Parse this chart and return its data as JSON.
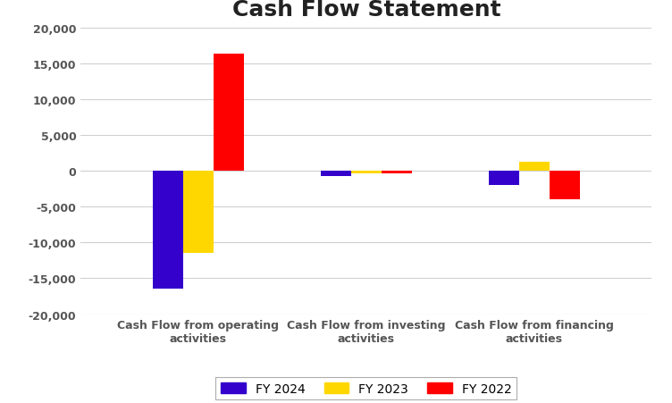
{
  "title": "Cash Flow Statement",
  "categories": [
    "Cash Flow from operating\nactivities",
    "Cash Flow from investing\nactivities",
    "Cash Flow from financing\nactivities"
  ],
  "series": {
    "FY 2024": [
      -16500,
      -700,
      -2000
    ],
    "FY 2023": [
      -11500,
      -400,
      1200
    ],
    "FY 2022": [
      16400,
      -300,
      -4000
    ]
  },
  "colors": {
    "FY 2024": "#3300CC",
    "FY 2023": "#FFD700",
    "FY 2022": "#FF0000"
  },
  "ylim": [
    -20000,
    20000
  ],
  "yticks": [
    -20000,
    -15000,
    -10000,
    -5000,
    0,
    5000,
    10000,
    15000,
    20000
  ],
  "background_color": "#ffffff",
  "title_fontsize": 18,
  "legend_fontsize": 10,
  "tick_fontsize": 9,
  "label_fontsize": 9,
  "bar_width": 0.18
}
